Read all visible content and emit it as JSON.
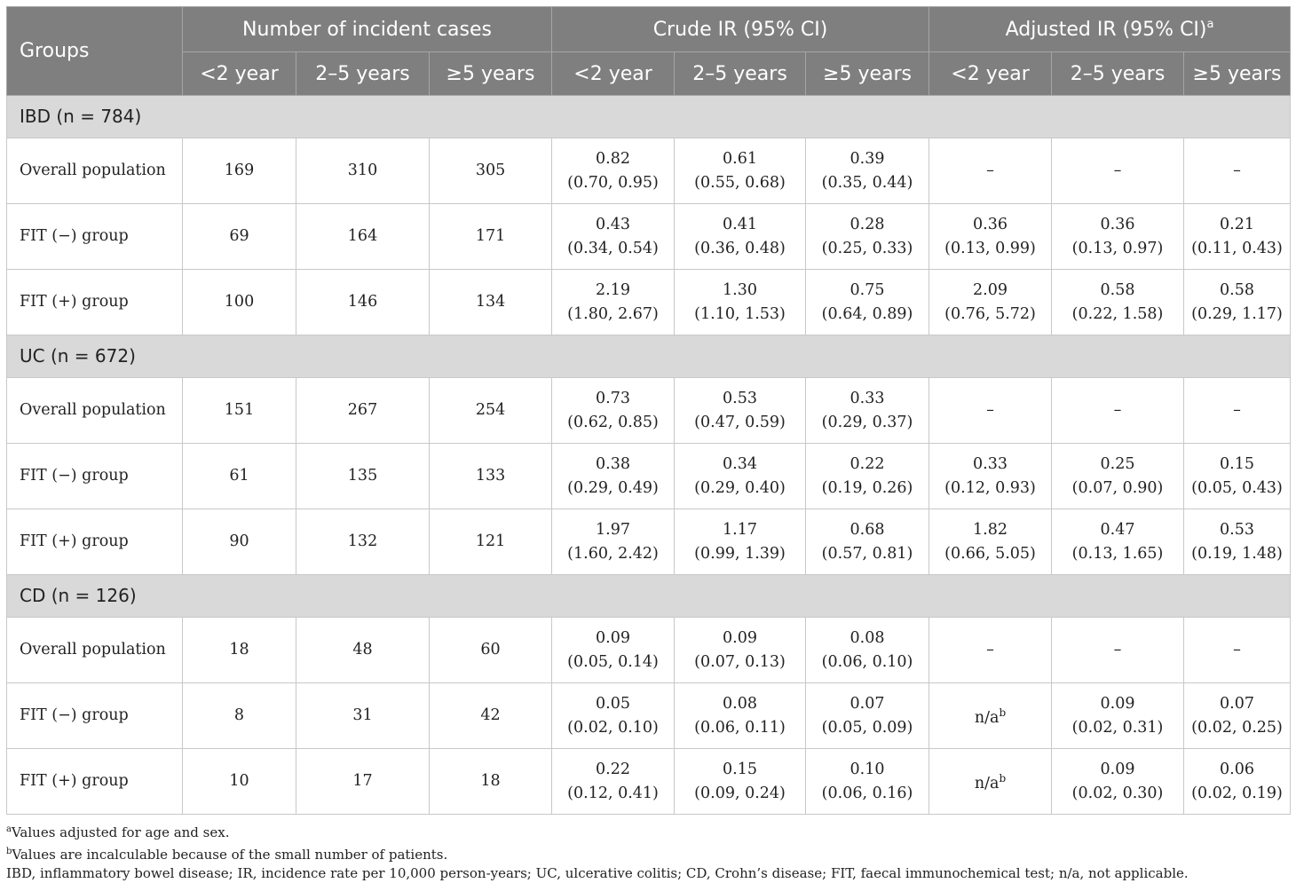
{
  "header": {
    "groups_label": "Groups",
    "group_headers": [
      {
        "label": "Number of incident cases",
        "sup": ""
      },
      {
        "label": "Crude IR (95% CI)",
        "sup": ""
      },
      {
        "label": "Adjusted IR (95% CI)",
        "sup": "a"
      }
    ],
    "sub_headers": [
      "<2 year",
      "2–5 years",
      "≥5 years",
      "<2 year",
      "2–5 years",
      "≥5 years",
      "<2 year",
      "2–5 years",
      "≥5 years"
    ]
  },
  "sections": [
    {
      "title": "IBD (n = 784)",
      "rows": [
        {
          "label": "Overall population",
          "cells": [
            {
              "v": "169"
            },
            {
              "v": "310"
            },
            {
              "v": "305"
            },
            {
              "v": "0.82",
              "ci": "(0.70, 0.95)"
            },
            {
              "v": "0.61",
              "ci": "(0.55, 0.68)"
            },
            {
              "v": "0.39",
              "ci": "(0.35, 0.44)"
            },
            {
              "v": "–"
            },
            {
              "v": "–"
            },
            {
              "v": "–"
            }
          ]
        },
        {
          "label": "FIT (−) group",
          "cells": [
            {
              "v": "69"
            },
            {
              "v": "164"
            },
            {
              "v": "171"
            },
            {
              "v": "0.43",
              "ci": "(0.34, 0.54)"
            },
            {
              "v": "0.41",
              "ci": "(0.36, 0.48)"
            },
            {
              "v": "0.28",
              "ci": "(0.25, 0.33)"
            },
            {
              "v": "0.36",
              "ci": "(0.13, 0.99)"
            },
            {
              "v": "0.36",
              "ci": "(0.13, 0.97)"
            },
            {
              "v": "0.21",
              "ci": "(0.11, 0.43)"
            }
          ]
        },
        {
          "label": "FIT (+) group",
          "cells": [
            {
              "v": "100"
            },
            {
              "v": "146"
            },
            {
              "v": "134"
            },
            {
              "v": "2.19",
              "ci": "(1.80, 2.67)"
            },
            {
              "v": "1.30",
              "ci": "(1.10, 1.53)"
            },
            {
              "v": "0.75",
              "ci": "(0.64, 0.89)"
            },
            {
              "v": "2.09",
              "ci": "(0.76, 5.72)"
            },
            {
              "v": "0.58",
              "ci": "(0.22, 1.58)"
            },
            {
              "v": "0.58",
              "ci": "(0.29, 1.17)"
            }
          ]
        }
      ]
    },
    {
      "title": "UC (n = 672)",
      "rows": [
        {
          "label": "Overall population",
          "cells": [
            {
              "v": "151"
            },
            {
              "v": "267"
            },
            {
              "v": "254"
            },
            {
              "v": "0.73",
              "ci": "(0.62, 0.85)"
            },
            {
              "v": "0.53",
              "ci": "(0.47, 0.59)"
            },
            {
              "v": "0.33",
              "ci": "(0.29, 0.37)"
            },
            {
              "v": "–"
            },
            {
              "v": "–"
            },
            {
              "v": "–"
            }
          ]
        },
        {
          "label": "FIT (−) group",
          "cells": [
            {
              "v": "61"
            },
            {
              "v": "135"
            },
            {
              "v": "133"
            },
            {
              "v": "0.38",
              "ci": "(0.29, 0.49)"
            },
            {
              "v": "0.34",
              "ci": "(0.29, 0.40)"
            },
            {
              "v": "0.22",
              "ci": "(0.19, 0.26)"
            },
            {
              "v": "0.33",
              "ci": "(0.12, 0.93)"
            },
            {
              "v": "0.25",
              "ci": "(0.07, 0.90)"
            },
            {
              "v": "0.15",
              "ci": "(0.05, 0.43)"
            }
          ]
        },
        {
          "label": "FIT (+) group",
          "cells": [
            {
              "v": "90"
            },
            {
              "v": "132"
            },
            {
              "v": "121"
            },
            {
              "v": "1.97",
              "ci": "(1.60, 2.42)"
            },
            {
              "v": "1.17",
              "ci": "(0.99, 1.39)"
            },
            {
              "v": "0.68",
              "ci": "(0.57, 0.81)"
            },
            {
              "v": "1.82",
              "ci": "(0.66, 5.05)"
            },
            {
              "v": "0.47",
              "ci": "(0.13, 1.65)"
            },
            {
              "v": "0.53",
              "ci": "(0.19, 1.48)"
            }
          ]
        }
      ]
    },
    {
      "title": "CD (n = 126)",
      "rows": [
        {
          "label": "Overall population",
          "cells": [
            {
              "v": "18"
            },
            {
              "v": "48"
            },
            {
              "v": "60"
            },
            {
              "v": "0.09",
              "ci": "(0.05, 0.14)"
            },
            {
              "v": "0.09",
              "ci": "(0.07, 0.13)"
            },
            {
              "v": "0.08",
              "ci": "(0.06, 0.10)"
            },
            {
              "v": "–"
            },
            {
              "v": "–"
            },
            {
              "v": "–"
            }
          ]
        },
        {
          "label": "FIT (−) group",
          "cells": [
            {
              "v": "8"
            },
            {
              "v": "31"
            },
            {
              "v": "42"
            },
            {
              "v": "0.05",
              "ci": "(0.02, 0.10)"
            },
            {
              "v": "0.08",
              "ci": "(0.06, 0.11)"
            },
            {
              "v": "0.07",
              "ci": "(0.05, 0.09)"
            },
            {
              "v": "n/a",
              "sup": "b"
            },
            {
              "v": "0.09",
              "ci": "(0.02, 0.31)"
            },
            {
              "v": "0.07",
              "ci": "(0.02, 0.25)"
            }
          ]
        },
        {
          "label": "FIT (+) group",
          "cells": [
            {
              "v": "10"
            },
            {
              "v": "17"
            },
            {
              "v": "18"
            },
            {
              "v": "0.22",
              "ci": "(0.12, 0.41)"
            },
            {
              "v": "0.15",
              "ci": "(0.09, 0.24)"
            },
            {
              "v": "0.10",
              "ci": "(0.06, 0.16)"
            },
            {
              "v": "n/a",
              "sup": "b"
            },
            {
              "v": "0.09",
              "ci": "(0.02, 0.30)"
            },
            {
              "v": "0.06",
              "ci": "(0.02, 0.19)"
            }
          ]
        }
      ]
    }
  ],
  "footnotes": [
    {
      "sup": "a",
      "text": "Values adjusted for age and sex."
    },
    {
      "sup": "b",
      "text": "Values are incalculable because of the small number of patients."
    },
    {
      "sup": "",
      "text": "IBD, inflammatory bowel disease; IR, incidence rate per 10,000 person-years; UC, ulcerative colitis; CD, Crohn’s disease; FIT, faecal immunochemical test; n/a, not applicable."
    }
  ]
}
